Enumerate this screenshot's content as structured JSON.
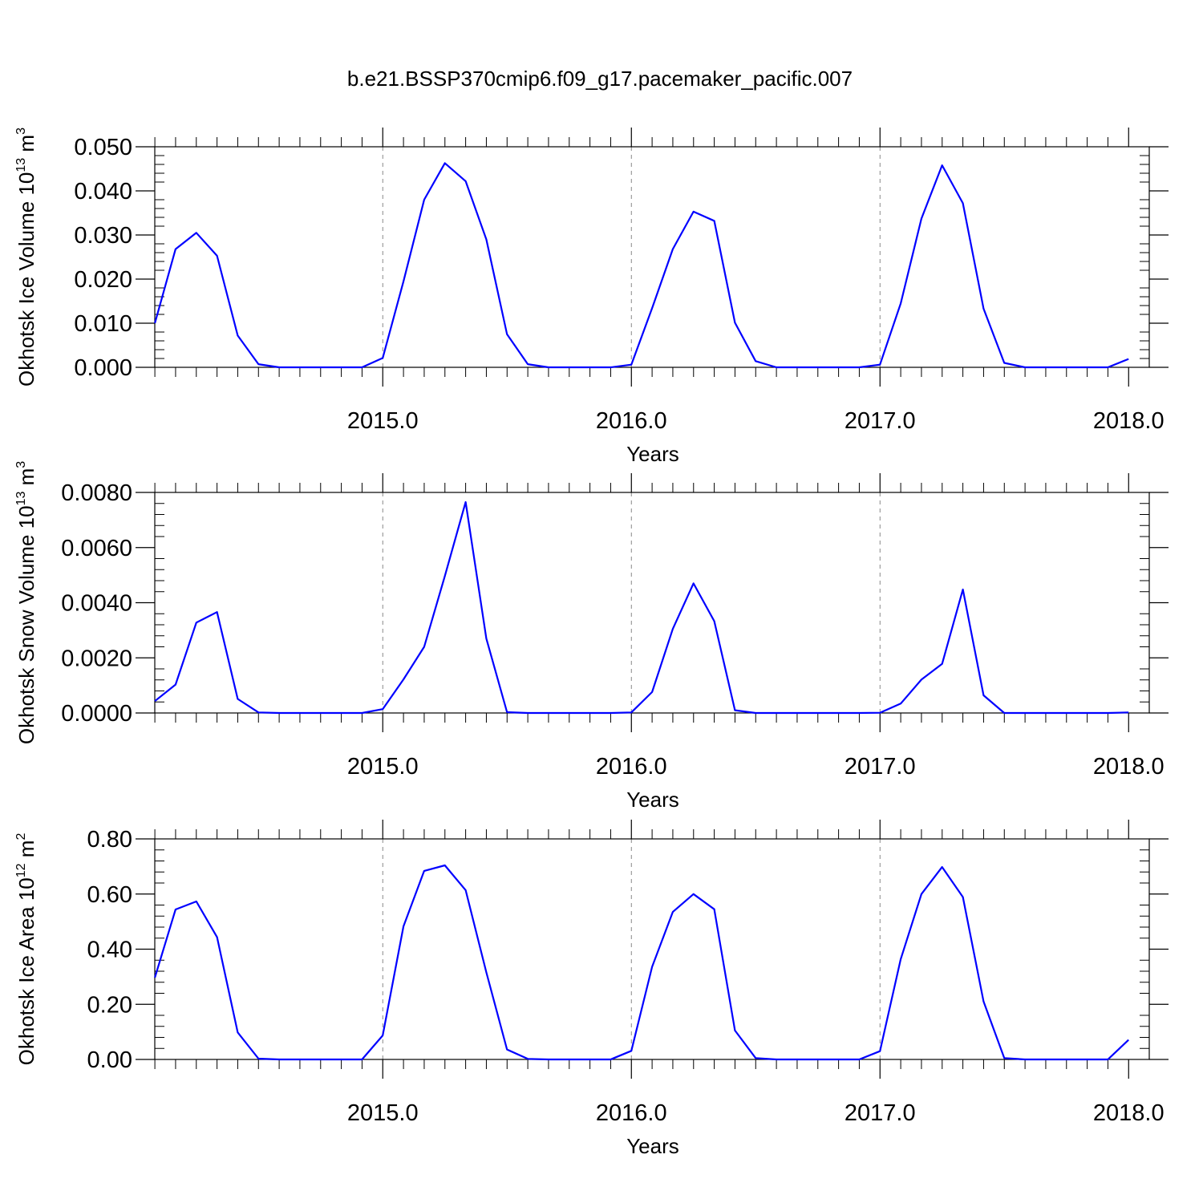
{
  "title": "b.e21.BSSP370cmip6.f09_g17.pacemaker_pacific.007",
  "colors": {
    "line": "#0000ff",
    "axis": "#000000",
    "grid": "#888888"
  },
  "chart_data": [
    {
      "type": "line",
      "xlabel": "Years",
      "ylabel": {
        "text": "Okhotsk Ice Volume 10",
        "exp": "13",
        "unit": " m",
        "unit_exp": "3"
      },
      "xlim": [
        2014.083,
        2018.083
      ],
      "ylim": [
        0,
        0.05
      ],
      "yticks": [
        0,
        0.01,
        0.02,
        0.03,
        0.04,
        0.05
      ],
      "ytick_labels": [
        "0.000",
        "0.010",
        "0.020",
        "0.030",
        "0.040",
        "0.050"
      ],
      "xticks": [
        2015,
        2016,
        2017,
        2018
      ],
      "xtick_labels": [
        "2015.0",
        "2016.0",
        "2017.0",
        "2018.0"
      ],
      "grid_x": [
        2015,
        2016,
        2017
      ],
      "x_start": 2014.0833,
      "x_step": 0.08333,
      "values": [
        0.01,
        0.0268,
        0.0305,
        0.0253,
        0.0072,
        0.0007,
        0.0,
        0.0,
        0.0,
        0.0,
        0.0,
        0.0021,
        0.0195,
        0.038,
        0.0463,
        0.0422,
        0.029,
        0.0075,
        0.0007,
        0.0,
        0.0,
        0.0,
        0.0,
        0.0006,
        0.0134,
        0.0268,
        0.0353,
        0.0332,
        0.0101,
        0.0014,
        0.0,
        0.0,
        0.0,
        0.0,
        0.0,
        0.0006,
        0.0145,
        0.0337,
        0.0458,
        0.0372,
        0.0133,
        0.001,
        0.0,
        0.0,
        0.0,
        0.0,
        0.0,
        0.0019
      ]
    },
    {
      "type": "line",
      "xlabel": "Years",
      "ylabel": {
        "text": "Okhotsk Snow Volume 10",
        "exp": "13",
        "unit": " m",
        "unit_exp": "3"
      },
      "xlim": [
        2014.083,
        2018.083
      ],
      "ylim": [
        0,
        0.008
      ],
      "yticks": [
        0,
        0.002,
        0.004,
        0.006,
        0.008
      ],
      "ytick_labels": [
        "0.0000",
        "0.0020",
        "0.0040",
        "0.0060",
        "0.0080"
      ],
      "xticks": [
        2015,
        2016,
        2017,
        2018
      ],
      "xtick_labels": [
        "2015.0",
        "2016.0",
        "2017.0",
        "2018.0"
      ],
      "grid_x": [
        2015,
        2016,
        2017
      ],
      "x_start": 2014.0833,
      "x_step": 0.08333,
      "values": [
        0.00043,
        0.00103,
        0.00328,
        0.00366,
        0.00051,
        2e-05,
        0.0,
        0.0,
        0.0,
        0.0,
        0.0,
        0.00014,
        0.00122,
        0.0024,
        0.00497,
        0.00765,
        0.0027,
        3e-05,
        0.0,
        0.0,
        0.0,
        0.0,
        0.0,
        2e-05,
        0.00076,
        0.00305,
        0.0047,
        0.00333,
        0.0001,
        0.0,
        0.0,
        0.0,
        0.0,
        0.0,
        0.0,
        1e-05,
        0.00034,
        0.00121,
        0.00178,
        0.00448,
        0.00064,
        0.0,
        0.0,
        0.0,
        0.0,
        0.0,
        0.0,
        2e-05
      ]
    },
    {
      "type": "line",
      "xlabel": "Years",
      "ylabel": {
        "text": "Okhotsk Ice Area 10",
        "exp": "12",
        "unit": " m",
        "unit_exp": "2"
      },
      "xlim": [
        2014.083,
        2018.083
      ],
      "ylim": [
        0,
        0.8
      ],
      "yticks": [
        0,
        0.2,
        0.4,
        0.6,
        0.8
      ],
      "ytick_labels": [
        "0.00",
        "0.20",
        "0.40",
        "0.60",
        "0.80"
      ],
      "xticks": [
        2015,
        2016,
        2017,
        2018
      ],
      "xtick_labels": [
        "2015.0",
        "2016.0",
        "2017.0",
        "2018.0"
      ],
      "grid_x": [
        2015,
        2016,
        2017
      ],
      "x_start": 2014.0833,
      "x_step": 0.08333,
      "values": [
        0.297,
        0.544,
        0.573,
        0.444,
        0.098,
        0.003,
        0.0,
        0.0,
        0.0,
        0.0,
        0.0,
        0.087,
        0.483,
        0.684,
        0.704,
        0.614,
        0.316,
        0.036,
        0.002,
        0.0,
        0.0,
        0.0,
        0.0,
        0.031,
        0.336,
        0.535,
        0.6,
        0.545,
        0.105,
        0.005,
        0.0,
        0.0,
        0.0,
        0.0,
        0.0,
        0.03,
        0.364,
        0.6,
        0.698,
        0.589,
        0.21,
        0.005,
        0.0,
        0.0,
        0.0,
        0.0,
        0.0,
        0.071
      ]
    }
  ]
}
